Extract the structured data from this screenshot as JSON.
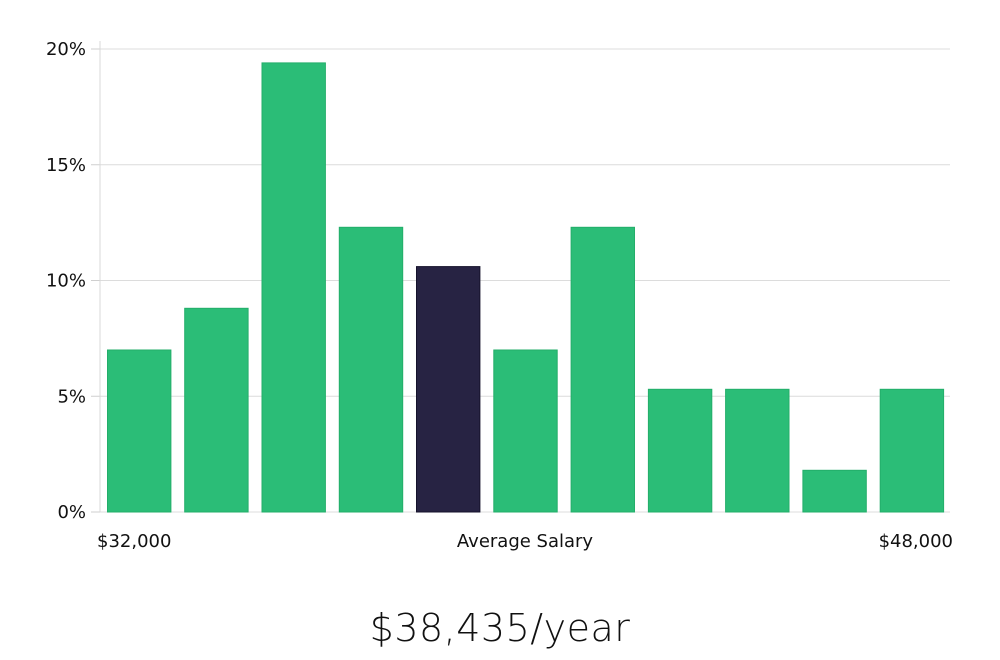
{
  "chart_data": {
    "type": "bar",
    "title": "",
    "xlabel": "Average Salary",
    "ylabel": "",
    "x_start_label": "$32,000",
    "x_end_label": "$48,000",
    "ylim": [
      0,
      20
    ],
    "y_ticks": [
      0,
      5,
      10,
      15,
      20
    ],
    "y_tick_labels": [
      "0%",
      "5%",
      "10%",
      "15%",
      "20%"
    ],
    "values": [
      7.0,
      8.8,
      19.4,
      12.3,
      10.6,
      7.0,
      12.3,
      5.3,
      5.3,
      1.8,
      5.3
    ],
    "highlight_index": 4,
    "grid": true,
    "bar_color": "#2bbd77",
    "highlight_color": "#272343"
  },
  "summary": {
    "salary_text": "$38,435/year"
  }
}
